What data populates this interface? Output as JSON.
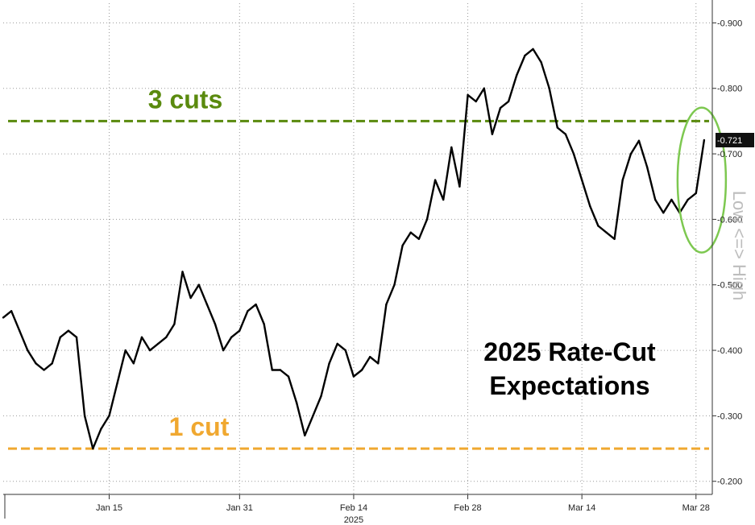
{
  "chart_data": {
    "type": "line",
    "title": "2025 Rate-Cut Expectations",
    "title_lines": [
      "2025 Rate-Cut",
      "Expectations"
    ],
    "ylabel": "Low <=> High",
    "year_label": "2025",
    "ylim": [
      0.18,
      0.93
    ],
    "y_ticks": [
      0.9,
      0.8,
      0.7,
      0.6,
      0.5,
      0.4,
      0.3,
      0.2
    ],
    "y_tick_labels": [
      "0.900",
      "0.800",
      "0.700",
      "0.600",
      "0.500",
      "0.400",
      "0.300",
      "0.200"
    ],
    "x_tick_labels": [
      "Jan 15",
      "Jan 31",
      "Feb 14",
      "Feb 28",
      "Mar 14",
      "Mar 28"
    ],
    "x_tick_dates": [
      "2025-01-15",
      "2025-01-31",
      "2025-02-14",
      "2025-02-28",
      "2025-03-14",
      "2025-03-28"
    ],
    "xlim": [
      "2025-01-02",
      "2025-03-30"
    ],
    "grid": true,
    "last_value": 0.721,
    "last_value_label": "0.721",
    "reference_lines": [
      {
        "label": "3 cuts",
        "value": 0.75,
        "color": "#5a8a0e"
      },
      {
        "label": "1 cut",
        "value": 0.25,
        "color": "#f0a830"
      }
    ],
    "highlight_color": "#7dc850",
    "series": [
      {
        "color": "#000000",
        "x": [
          "2025-01-02",
          "2025-01-03",
          "2025-01-04",
          "2025-01-05",
          "2025-01-06",
          "2025-01-07",
          "2025-01-08",
          "2025-01-09",
          "2025-01-10",
          "2025-01-11",
          "2025-01-12",
          "2025-01-13",
          "2025-01-14",
          "2025-01-15",
          "2025-01-16",
          "2025-01-17",
          "2025-01-18",
          "2025-01-19",
          "2025-01-20",
          "2025-01-21",
          "2025-01-22",
          "2025-01-23",
          "2025-01-24",
          "2025-01-25",
          "2025-01-26",
          "2025-01-27",
          "2025-01-28",
          "2025-01-29",
          "2025-01-30",
          "2025-01-31",
          "2025-02-01",
          "2025-02-02",
          "2025-02-03",
          "2025-02-04",
          "2025-02-05",
          "2025-02-06",
          "2025-02-07",
          "2025-02-08",
          "2025-02-09",
          "2025-02-10",
          "2025-02-11",
          "2025-02-12",
          "2025-02-13",
          "2025-02-14",
          "2025-02-15",
          "2025-02-16",
          "2025-02-17",
          "2025-02-18",
          "2025-02-19",
          "2025-02-20",
          "2025-02-21",
          "2025-02-22",
          "2025-02-23",
          "2025-02-24",
          "2025-02-25",
          "2025-02-26",
          "2025-02-27",
          "2025-02-28",
          "2025-03-01",
          "2025-03-02",
          "2025-03-03",
          "2025-03-04",
          "2025-03-05",
          "2025-03-06",
          "2025-03-07",
          "2025-03-08",
          "2025-03-09",
          "2025-03-10",
          "2025-03-11",
          "2025-03-12",
          "2025-03-13",
          "2025-03-14",
          "2025-03-15",
          "2025-03-16",
          "2025-03-17",
          "2025-03-18",
          "2025-03-19",
          "2025-03-20",
          "2025-03-21",
          "2025-03-22",
          "2025-03-23",
          "2025-03-24",
          "2025-03-25",
          "2025-03-26",
          "2025-03-27",
          "2025-03-28",
          "2025-03-29"
        ],
        "values": [
          0.45,
          0.46,
          0.43,
          0.4,
          0.38,
          0.37,
          0.38,
          0.42,
          0.43,
          0.42,
          0.3,
          0.25,
          0.28,
          0.3,
          0.35,
          0.4,
          0.38,
          0.42,
          0.4,
          0.41,
          0.42,
          0.44,
          0.52,
          0.48,
          0.5,
          0.47,
          0.44,
          0.4,
          0.42,
          0.43,
          0.46,
          0.47,
          0.44,
          0.37,
          0.37,
          0.36,
          0.32,
          0.27,
          0.3,
          0.33,
          0.38,
          0.41,
          0.4,
          0.36,
          0.37,
          0.39,
          0.38,
          0.47,
          0.5,
          0.56,
          0.58,
          0.57,
          0.6,
          0.66,
          0.63,
          0.71,
          0.65,
          0.79,
          0.78,
          0.8,
          0.73,
          0.77,
          0.78,
          0.82,
          0.85,
          0.86,
          0.84,
          0.8,
          0.74,
          0.73,
          0.7,
          0.66,
          0.62,
          0.59,
          0.58,
          0.57,
          0.66,
          0.7,
          0.72,
          0.68,
          0.63,
          0.61,
          0.63,
          0.61,
          0.63,
          0.64,
          0.721
        ]
      }
    ]
  }
}
